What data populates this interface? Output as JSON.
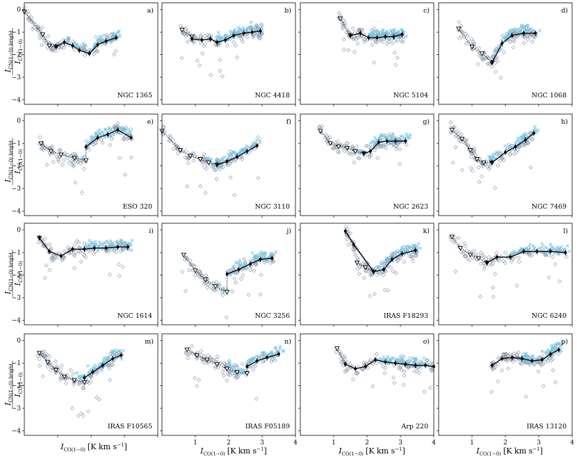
{
  "figure": {
    "y_label_main": "I",
    "y_label_sub": "CN(1−0) bright",
    "y_label_den": "I",
    "y_label_den_sub": "CO(1−0)",
    "x_label_main": "I",
    "x_label_sub": "CO(1−0)",
    "x_label_unit": "[K km s",
    "x_label_exp": "−1",
    "x_label_close": "]"
  },
  "colors": {
    "scatter_gray": "#8a96a8",
    "scatter_blue": "#76c6e6",
    "line": "#000000"
  },
  "chart_data": [
    {
      "type": "scatter",
      "panel": "a)",
      "galaxy": "NGC 1365",
      "xlim": [
        0,
        4
      ],
      "ylim": [
        -4.2,
        0.3
      ],
      "upper_x": [
        0.0,
        0.55,
        0.75,
        0.95
      ],
      "upper_y": [
        -0.1,
        -1.1,
        -1.6,
        -1.65
      ],
      "det_x": [
        0.95,
        1.2,
        1.45,
        1.65,
        1.95,
        2.2,
        2.45,
        2.75
      ],
      "det_y": [
        -1.65,
        -1.45,
        -1.6,
        -1.8,
        -1.95,
        -1.55,
        -1.4,
        -1.25
      ]
    },
    {
      "type": "scatter",
      "panel": "b)",
      "galaxy": "NGC 4418",
      "xlim": [
        0,
        4
      ],
      "ylim": [
        -4.2,
        0.3
      ],
      "upper_x": [
        0.6,
        0.9
      ],
      "upper_y": [
        -0.9,
        -1.2
      ],
      "det_x": [
        0.9,
        1.2,
        1.45,
        1.65,
        1.9,
        2.15,
        2.45,
        2.7,
        2.95
      ],
      "det_y": [
        -1.3,
        -1.35,
        -1.3,
        -1.45,
        -1.35,
        -1.15,
        -1.05,
        -1.0,
        -0.95
      ]
    },
    {
      "type": "scatter",
      "panel": "c)",
      "galaxy": "NGC 5104",
      "xlim": [
        0,
        4
      ],
      "ylim": [
        -4.2,
        0.3
      ],
      "upper_x": [
        1.2,
        1.5
      ],
      "upper_y": [
        -0.4,
        -1.15
      ],
      "det_x": [
        1.5,
        1.8,
        2.05,
        2.3,
        2.55,
        2.8,
        3.05
      ],
      "det_y": [
        -1.15,
        -1.05,
        -1.25,
        -1.25,
        -1.2,
        -1.2,
        -1.1
      ]
    },
    {
      "type": "scatter",
      "panel": "d)",
      "galaxy": "NGC 1068",
      "xlim": [
        0,
        4
      ],
      "ylim": [
        -4.2,
        0.3
      ],
      "upper_x": [
        0.6,
        1.0,
        1.3,
        1.6
      ],
      "upper_y": [
        -0.85,
        -1.65,
        -1.95,
        -2.35
      ],
      "det_x": [
        1.6,
        1.9,
        2.2,
        2.55,
        2.9
      ],
      "det_y": [
        -2.35,
        -1.5,
        -1.15,
        -1.05,
        -1.05
      ]
    },
    {
      "type": "scatter",
      "panel": "e)",
      "galaxy": "ESO 320",
      "xlim": [
        0,
        4
      ],
      "ylim": [
        -4.2,
        0.3
      ],
      "upper_x": [
        0.5,
        0.8,
        1.1,
        1.5,
        1.85
      ],
      "upper_y": [
        -1.0,
        -1.35,
        -1.5,
        -1.65,
        -1.75
      ],
      "det_x": [
        1.85,
        2.2,
        2.5,
        2.8,
        3.2
      ],
      "det_y": [
        -1.15,
        -0.75,
        -0.6,
        -0.4,
        -0.75
      ]
    },
    {
      "type": "scatter",
      "panel": "f)",
      "galaxy": "NGC 3110",
      "xlim": [
        0,
        4
      ],
      "ylim": [
        -4.2,
        0.3
      ],
      "upper_x": [
        0.0,
        0.55,
        0.85,
        1.15,
        1.4,
        1.65
      ],
      "upper_y": [
        -0.45,
        -1.3,
        -1.55,
        -1.7,
        -1.85,
        -1.95
      ],
      "det_x": [
        1.65,
        1.95,
        2.25,
        2.55,
        2.85
      ],
      "det_y": [
        -1.95,
        -1.8,
        -1.6,
        -1.35,
        -1.1
      ]
    },
    {
      "type": "scatter",
      "panel": "g)",
      "galaxy": "NGC 2623",
      "xlim": [
        0,
        4
      ],
      "ylim": [
        -4.2,
        0.3
      ],
      "upper_x": [
        0.6,
        0.9,
        1.15,
        1.4,
        1.65,
        1.9
      ],
      "upper_y": [
        -0.45,
        -1.0,
        -1.15,
        -1.2,
        -1.35,
        -1.45
      ],
      "det_x": [
        1.9,
        2.1,
        2.35,
        2.6,
        2.85,
        3.15
      ],
      "det_y": [
        -1.45,
        -1.35,
        -0.95,
        -0.9,
        -0.9,
        -0.9
      ]
    },
    {
      "type": "scatter",
      "panel": "h)",
      "galaxy": "NGC 7469",
      "xlim": [
        0,
        4
      ],
      "ylim": [
        -4.2,
        0.3
      ],
      "upper_x": [
        0.4,
        0.7,
        0.95,
        1.15,
        1.35,
        1.6
      ],
      "upper_y": [
        -0.4,
        -0.8,
        -1.3,
        -1.7,
        -1.85,
        -1.85
      ],
      "det_x": [
        1.6,
        2.0,
        2.3,
        2.6,
        2.85
      ],
      "det_y": [
        -1.85,
        -1.4,
        -1.15,
        -0.85,
        -0.55
      ]
    },
    {
      "type": "scatter",
      "panel": "i)",
      "galaxy": "NGC 1614",
      "xlim": [
        0,
        4
      ],
      "ylim": [
        -4.2,
        0.3
      ],
      "upper_x": [
        0.45
      ],
      "upper_y": [
        -0.35
      ],
      "det_x": [
        0.45,
        0.75,
        1.1,
        1.45,
        1.8,
        2.1,
        2.45,
        2.8,
        3.1
      ],
      "det_y": [
        -0.35,
        -0.95,
        -1.15,
        -0.85,
        -0.85,
        -0.8,
        -0.8,
        -0.75,
        -0.75
      ]
    },
    {
      "type": "scatter",
      "panel": "j)",
      "galaxy": "NGC 3256",
      "xlim": [
        0,
        4
      ],
      "ylim": [
        -4.2,
        0.3
      ],
      "upper_x": [
        0.65,
        1.0,
        1.3,
        1.6,
        1.95
      ],
      "upper_y": [
        -1.1,
        -1.8,
        -2.2,
        -2.5,
        -2.75
      ],
      "det_x": [
        1.95,
        2.3,
        2.65,
        2.95,
        3.3
      ],
      "det_y": [
        -1.95,
        -1.75,
        -1.5,
        -1.3,
        -1.25
      ]
    },
    {
      "type": "scatter",
      "panel": "k)",
      "galaxy": "IRAS F18293",
      "xlim": [
        0,
        4
      ],
      "ylim": [
        -4.2,
        0.3
      ],
      "upper_x": [
        1.7,
        1.95,
        2.2
      ],
      "upper_y": [
        -1.45,
        -1.65,
        -1.85
      ],
      "det_x": [
        1.35,
        1.6,
        2.2,
        2.5,
        2.75,
        3.05,
        3.45
      ],
      "det_y": [
        -0.05,
        -0.65,
        -1.85,
        -1.75,
        -1.3,
        -1.05,
        -0.9
      ]
    },
    {
      "type": "scatter",
      "panel": "l)",
      "galaxy": "NGC 6240",
      "xlim": [
        0,
        4
      ],
      "ylim": [
        -4.2,
        0.3
      ],
      "upper_x": [
        0.4,
        0.65,
        0.95,
        1.2,
        1.45
      ],
      "upper_y": [
        -0.3,
        -0.8,
        -1.1,
        -1.25,
        -1.45
      ],
      "det_x": [
        1.45,
        1.75,
        2.15,
        2.55,
        2.95,
        3.35,
        3.8
      ],
      "det_y": [
        -1.45,
        -1.2,
        -1.2,
        -0.95,
        -0.95,
        -0.95,
        -1.0
      ]
    },
    {
      "type": "scatter",
      "panel": "m)",
      "galaxy": "IRAS F10565",
      "xlim": [
        0,
        4
      ],
      "ylim": [
        -4.2,
        0.3
      ],
      "upper_x": [
        0.45,
        0.7,
        0.95,
        1.2,
        1.5,
        1.8
      ],
      "upper_y": [
        -0.55,
        -0.95,
        -1.3,
        -1.6,
        -1.75,
        -1.85
      ],
      "det_x": [
        1.8,
        2.05,
        2.35,
        2.65,
        2.9
      ],
      "det_y": [
        -1.65,
        -1.4,
        -1.1,
        -0.8,
        -0.65
      ]
    },
    {
      "type": "scatter",
      "panel": "n)",
      "galaxy": "IRAS F05189",
      "xlim": [
        0,
        4
      ],
      "ylim": [
        -4.2,
        0.3
      ],
      "upper_x": [
        0.75,
        1.05,
        1.35,
        1.65,
        1.95,
        2.25,
        2.55
      ],
      "upper_y": [
        -0.4,
        -0.65,
        -0.85,
        -1.05,
        -1.25,
        -1.4,
        -1.45
      ],
      "det_x": [
        2.55,
        2.85,
        3.15,
        3.5
      ],
      "det_y": [
        -1.15,
        -0.9,
        -0.75,
        -0.6
      ]
    },
    {
      "type": "scatter",
      "panel": "o)",
      "galaxy": "Arp 220",
      "xlim": [
        0,
        4
      ],
      "ylim": [
        -4.2,
        0.3
      ],
      "upper_x": [
        1.1
      ],
      "upper_y": [
        -0.35
      ],
      "det_x": [
        1.35,
        1.65,
        1.95,
        2.25,
        2.55,
        2.85,
        3.15,
        3.45,
        3.75,
        4.0
      ],
      "det_y": [
        -1.05,
        -1.25,
        -1.15,
        -0.85,
        -0.95,
        -1.0,
        -1.05,
        -1.1,
        -1.1,
        -1.15
      ]
    },
    {
      "type": "scatter",
      "panel": "p)",
      "galaxy": "IRAS 13120",
      "xlim": [
        0,
        4
      ],
      "ylim": [
        -4.2,
        0.3
      ],
      "upper_x": [],
      "upper_y": [],
      "det_x": [
        1.6,
        1.9,
        2.2,
        2.5,
        2.8,
        3.1,
        3.35,
        3.6
      ],
      "det_y": [
        -1.1,
        -0.8,
        -0.75,
        -0.8,
        -0.9,
        -0.85,
        -0.6,
        -0.4
      ]
    }
  ],
  "axes": {
    "yticks": [
      "0",
      "−1",
      "−2",
      "−3",
      "−4"
    ],
    "ytick_values": [
      0,
      -1,
      -2,
      -3,
      -4
    ],
    "xticks": [
      "1",
      "2",
      "3",
      "4"
    ],
    "xtick_values": [
      1,
      2,
      3,
      4
    ]
  }
}
